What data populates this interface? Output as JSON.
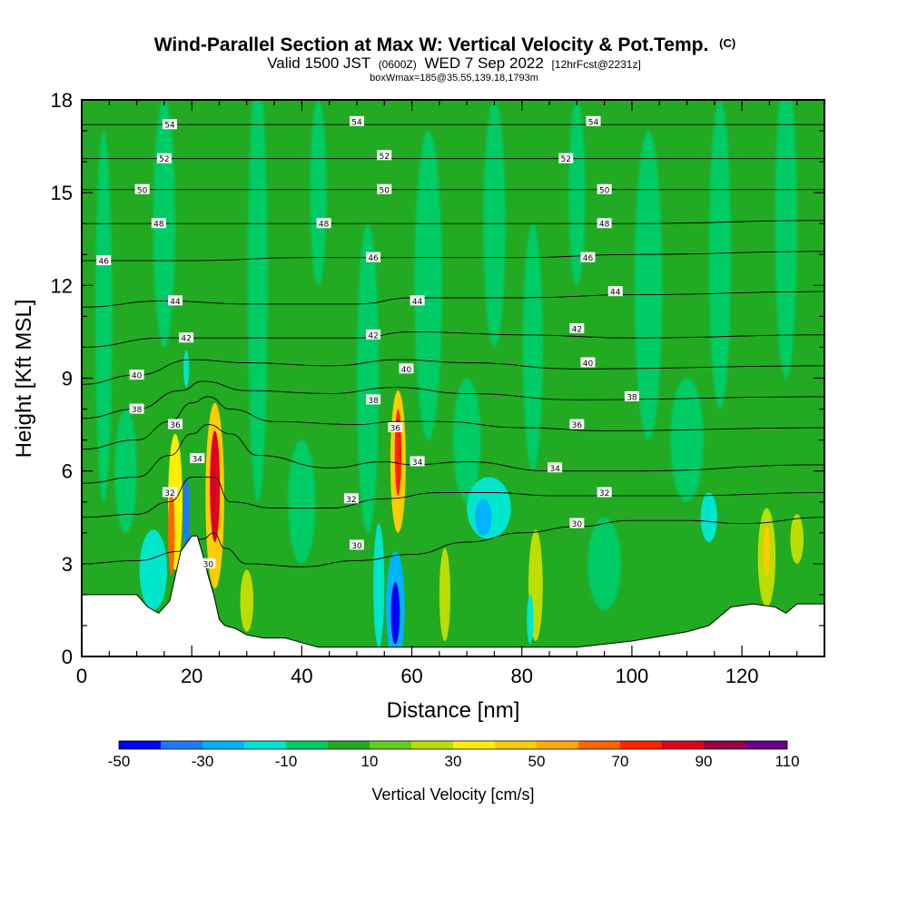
{
  "chart_data": {
    "type": "heatmap",
    "title": "Wind-Parallel Section at Max W: Vertical Velocity & Pot.Temp.",
    "title_suffix": "(C)",
    "subtitle": {
      "valid": "Valid 1500 JST",
      "zulu": "(0600Z)",
      "date": "WED 7 Sep 2022",
      "forecast": "[12hrFcst@2231z]"
    },
    "note": "boxWmax=185@35.55,139.18,1793m",
    "xlabel": "Distance [nm]",
    "ylabel": "Height [Kft MSL]",
    "xlim": [
      0,
      135
    ],
    "ylim": [
      0,
      18
    ],
    "xticks": [
      0,
      20,
      40,
      60,
      80,
      100,
      120
    ],
    "yticks": [
      0,
      3,
      6,
      9,
      12,
      15,
      18
    ],
    "colorbar": {
      "label": "Vertical Velocity [cm/s]",
      "range": [
        -50,
        110
      ],
      "tick_values": [
        -50,
        -30,
        -10,
        10,
        30,
        50,
        70,
        90,
        110
      ],
      "colors": [
        "#0000ff",
        "#2277ff",
        "#00b4ff",
        "#00e6cc",
        "#00cc66",
        "#22aa22",
        "#66cc22",
        "#bbdd00",
        "#ffee00",
        "#ffcc00",
        "#ffaa00",
        "#ff6600",
        "#ff2200",
        "#dd0022",
        "#990044",
        "#660088"
      ]
    },
    "terrain": [
      [
        0,
        2.0
      ],
      [
        5,
        2.0
      ],
      [
        10,
        2.0
      ],
      [
        12,
        1.6
      ],
      [
        14,
        1.4
      ],
      [
        16,
        1.8
      ],
      [
        18,
        3.4
      ],
      [
        20,
        3.9
      ],
      [
        21,
        3.9
      ],
      [
        22,
        3.3
      ],
      [
        23,
        2.6
      ],
      [
        24,
        2.0
      ],
      [
        25,
        1.2
      ],
      [
        26,
        1.0
      ],
      [
        28,
        0.9
      ],
      [
        30,
        0.7
      ],
      [
        33,
        0.6
      ],
      [
        37,
        0.6
      ],
      [
        43,
        0.3
      ],
      [
        50,
        0.3
      ],
      [
        60,
        0.3
      ],
      [
        70,
        0.3
      ],
      [
        80,
        0.3
      ],
      [
        90,
        0.3
      ],
      [
        100,
        0.5
      ],
      [
        110,
        0.8
      ],
      [
        114,
        1.0
      ],
      [
        118,
        1.6
      ],
      [
        122,
        1.7
      ],
      [
        126,
        1.6
      ],
      [
        128,
        1.4
      ],
      [
        130,
        1.7
      ],
      [
        135,
        1.7
      ]
    ],
    "theta_contours": [
      {
        "label": "30",
        "points": [
          [
            0,
            3.0
          ],
          [
            10,
            3.1
          ],
          [
            18,
            3.4
          ],
          [
            22,
            3.8
          ],
          [
            24,
            4.0
          ],
          [
            26,
            3.5
          ],
          [
            30,
            3.0
          ],
          [
            40,
            2.9
          ],
          [
            50,
            3.1
          ],
          [
            60,
            3.3
          ],
          [
            70,
            3.7
          ],
          [
            80,
            4.0
          ],
          [
            90,
            4.2
          ],
          [
            100,
            4.4
          ],
          [
            110,
            4.4
          ],
          [
            120,
            4.3
          ],
          [
            135,
            4.5
          ]
        ]
      },
      {
        "label": "32",
        "points": [
          [
            0,
            4.5
          ],
          [
            10,
            4.6
          ],
          [
            16,
            5.0
          ],
          [
            20,
            5.8
          ],
          [
            24,
            5.8
          ],
          [
            27,
            5.0
          ],
          [
            35,
            4.8
          ],
          [
            45,
            4.8
          ],
          [
            55,
            5.1
          ],
          [
            65,
            5.3
          ],
          [
            75,
            5.3
          ],
          [
            85,
            5.2
          ],
          [
            95,
            5.2
          ],
          [
            110,
            5.2
          ],
          [
            135,
            5.3
          ]
        ]
      },
      {
        "label": "34",
        "points": [
          [
            0,
            5.6
          ],
          [
            10,
            5.8
          ],
          [
            16,
            6.5
          ],
          [
            20,
            7.2
          ],
          [
            23,
            7.5
          ],
          [
            27,
            7.2
          ],
          [
            32,
            6.5
          ],
          [
            45,
            6.1
          ],
          [
            55,
            6.3
          ],
          [
            60,
            6.2
          ],
          [
            70,
            6.3
          ],
          [
            85,
            6.0
          ],
          [
            100,
            6.0
          ],
          [
            135,
            6.2
          ]
        ]
      },
      {
        "label": "36",
        "points": [
          [
            0,
            6.7
          ],
          [
            10,
            7.0
          ],
          [
            16,
            7.6
          ],
          [
            20,
            8.2
          ],
          [
            23,
            8.4
          ],
          [
            27,
            8.0
          ],
          [
            35,
            7.6
          ],
          [
            50,
            7.5
          ],
          [
            57,
            7.6
          ],
          [
            65,
            7.6
          ],
          [
            80,
            7.4
          ],
          [
            95,
            7.3
          ],
          [
            135,
            7.4
          ]
        ]
      },
      {
        "label": "38",
        "points": [
          [
            0,
            7.7
          ],
          [
            10,
            8.0
          ],
          [
            18,
            8.6
          ],
          [
            22,
            8.9
          ],
          [
            30,
            8.6
          ],
          [
            45,
            8.5
          ],
          [
            57,
            8.7
          ],
          [
            70,
            8.5
          ],
          [
            90,
            8.3
          ],
          [
            135,
            8.4
          ]
        ]
      },
      {
        "label": "40",
        "points": [
          [
            0,
            8.8
          ],
          [
            10,
            9.1
          ],
          [
            20,
            9.6
          ],
          [
            30,
            9.5
          ],
          [
            45,
            9.4
          ],
          [
            58,
            9.6
          ],
          [
            70,
            9.5
          ],
          [
            90,
            9.3
          ],
          [
            135,
            9.4
          ]
        ]
      },
      {
        "label": "42",
        "points": [
          [
            0,
            10.0
          ],
          [
            15,
            10.3
          ],
          [
            30,
            10.3
          ],
          [
            50,
            10.3
          ],
          [
            60,
            10.5
          ],
          [
            80,
            10.4
          ],
          [
            100,
            10.3
          ],
          [
            135,
            10.4
          ]
        ]
      },
      {
        "label": "44",
        "points": [
          [
            0,
            11.3
          ],
          [
            15,
            11.5
          ],
          [
            30,
            11.4
          ],
          [
            50,
            11.4
          ],
          [
            60,
            11.6
          ],
          [
            80,
            11.6
          ],
          [
            100,
            11.7
          ],
          [
            135,
            11.8
          ]
        ]
      },
      {
        "label": "46",
        "points": [
          [
            0,
            12.8
          ],
          [
            20,
            12.8
          ],
          [
            40,
            12.9
          ],
          [
            60,
            12.9
          ],
          [
            80,
            12.9
          ],
          [
            100,
            13.0
          ],
          [
            135,
            13.1
          ]
        ]
      },
      {
        "label": "48",
        "points": [
          [
            0,
            14.0
          ],
          [
            20,
            14.0
          ],
          [
            40,
            14.0
          ],
          [
            60,
            14.0
          ],
          [
            80,
            14.0
          ],
          [
            100,
            14.0
          ],
          [
            135,
            14.1
          ]
        ]
      },
      {
        "label": "50",
        "points": [
          [
            0,
            15.1
          ],
          [
            20,
            15.1
          ],
          [
            40,
            15.1
          ],
          [
            60,
            15.1
          ],
          [
            80,
            15.1
          ],
          [
            100,
            15.1
          ],
          [
            135,
            15.1
          ]
        ]
      },
      {
        "label": "52",
        "points": [
          [
            0,
            16.1
          ],
          [
            20,
            16.1
          ],
          [
            40,
            16.1
          ],
          [
            60,
            16.1
          ],
          [
            80,
            16.1
          ],
          [
            100,
            16.1
          ],
          [
            135,
            16.1
          ]
        ]
      },
      {
        "label": "54",
        "points": [
          [
            0,
            17.2
          ],
          [
            20,
            17.2
          ],
          [
            40,
            17.2
          ],
          [
            60,
            17.2
          ],
          [
            80,
            17.2
          ],
          [
            100,
            17.2
          ],
          [
            135,
            17.2
          ]
        ]
      }
    ],
    "contour_labels": [
      {
        "text": "54",
        "x": 16,
        "y": 17.2
      },
      {
        "text": "54",
        "x": 50,
        "y": 17.3
      },
      {
        "text": "54",
        "x": 93,
        "y": 17.3
      },
      {
        "text": "52",
        "x": 15,
        "y": 16.1
      },
      {
        "text": "52",
        "x": 55,
        "y": 16.2
      },
      {
        "text": "52",
        "x": 88,
        "y": 16.1
      },
      {
        "text": "50",
        "x": 11,
        "y": 15.1
      },
      {
        "text": "50",
        "x": 55,
        "y": 15.1
      },
      {
        "text": "50",
        "x": 95,
        "y": 15.1
      },
      {
        "text": "48",
        "x": 14,
        "y": 14.0
      },
      {
        "text": "48",
        "x": 44,
        "y": 14.0
      },
      {
        "text": "48",
        "x": 95,
        "y": 14.0
      },
      {
        "text": "46",
        "x": 4,
        "y": 12.8
      },
      {
        "text": "46",
        "x": 53,
        "y": 12.9
      },
      {
        "text": "46",
        "x": 92,
        "y": 12.9
      },
      {
        "text": "44",
        "x": 17,
        "y": 11.5
      },
      {
        "text": "44",
        "x": 61,
        "y": 11.5
      },
      {
        "text": "44",
        "x": 97,
        "y": 11.8
      },
      {
        "text": "42",
        "x": 19,
        "y": 10.3
      },
      {
        "text": "42",
        "x": 53,
        "y": 10.4
      },
      {
        "text": "42",
        "x": 90,
        "y": 10.6
      },
      {
        "text": "40",
        "x": 10,
        "y": 9.1
      },
      {
        "text": "40",
        "x": 59,
        "y": 9.3
      },
      {
        "text": "40",
        "x": 92,
        "y": 9.5
      },
      {
        "text": "38",
        "x": 10,
        "y": 8.0
      },
      {
        "text": "38",
        "x": 53,
        "y": 8.3
      },
      {
        "text": "38",
        "x": 100,
        "y": 8.4
      },
      {
        "text": "36",
        "x": 17,
        "y": 7.5
      },
      {
        "text": "36",
        "x": 57,
        "y": 7.4
      },
      {
        "text": "36",
        "x": 90,
        "y": 7.5
      },
      {
        "text": "34",
        "x": 21,
        "y": 6.4
      },
      {
        "text": "34",
        "x": 61,
        "y": 6.3
      },
      {
        "text": "34",
        "x": 86,
        "y": 6.1
      },
      {
        "text": "32",
        "x": 16,
        "y": 5.3
      },
      {
        "text": "32",
        "x": 49,
        "y": 5.1
      },
      {
        "text": "32",
        "x": 95,
        "y": 5.3
      },
      {
        "text": "30",
        "x": 23,
        "y": 3.0
      },
      {
        "text": "30",
        "x": 50,
        "y": 3.6
      },
      {
        "text": "30",
        "x": 90,
        "y": 4.3
      }
    ],
    "vv_features": [
      {
        "x": 17,
        "y": 5.0,
        "rx": 1.3,
        "ry": 2.2,
        "value": 35
      },
      {
        "x": 16.3,
        "y": 4.0,
        "rx": 0.6,
        "ry": 1.4,
        "value": 60
      },
      {
        "x": 19,
        "y": 4.6,
        "rx": 0.6,
        "ry": 1.2,
        "value": -35
      },
      {
        "x": 24.2,
        "y": 5.2,
        "rx": 1.7,
        "ry": 3.0,
        "value": 45
      },
      {
        "x": 24.2,
        "y": 5.5,
        "rx": 0.9,
        "ry": 1.8,
        "value": 85
      },
      {
        "x": 57.5,
        "y": 6.3,
        "rx": 1.4,
        "ry": 2.3,
        "value": 40
      },
      {
        "x": 57.5,
        "y": 6.6,
        "rx": 0.6,
        "ry": 1.4,
        "value": 75
      },
      {
        "x": 57,
        "y": 1.6,
        "rx": 1.7,
        "ry": 1.8,
        "value": -30
      },
      {
        "x": 57,
        "y": 1.4,
        "rx": 0.8,
        "ry": 1.0,
        "value": -50
      },
      {
        "x": 13,
        "y": 2.8,
        "rx": 2.5,
        "ry": 1.3,
        "value": -15
      },
      {
        "x": 54,
        "y": 2.3,
        "rx": 1.0,
        "ry": 2.0,
        "value": -15
      },
      {
        "x": 74,
        "y": 4.8,
        "rx": 4.0,
        "ry": 1.0,
        "value": -15
      },
      {
        "x": 73,
        "y": 4.5,
        "rx": 1.5,
        "ry": 0.6,
        "value": -25
      },
      {
        "x": 82.5,
        "y": 2.3,
        "rx": 1.3,
        "ry": 1.8,
        "value": 25
      },
      {
        "x": 81.5,
        "y": 1.2,
        "rx": 0.6,
        "ry": 0.8,
        "value": -15
      },
      {
        "x": 124.5,
        "y": 3.2,
        "rx": 1.6,
        "ry": 1.6,
        "value": 25
      },
      {
        "x": 124.5,
        "y": 3.4,
        "rx": 0.6,
        "ry": 0.8,
        "value": 40
      },
      {
        "x": 114,
        "y": 4.5,
        "rx": 1.5,
        "ry": 0.8,
        "value": -15
      },
      {
        "x": 66,
        "y": 2.0,
        "rx": 1.0,
        "ry": 1.5,
        "value": 20
      },
      {
        "x": 30,
        "y": 1.8,
        "rx": 1.2,
        "ry": 1.0,
        "value": 20
      },
      {
        "x": 19,
        "y": 9.3,
        "rx": 0.5,
        "ry": 0.6,
        "value": -15
      },
      {
        "x": 130,
        "y": 3.8,
        "rx": 1.2,
        "ry": 0.8,
        "value": 20
      }
    ],
    "background_streaks": [
      {
        "x": 4,
        "y": 11,
        "rx": 1.5,
        "ry": 6,
        "value": -5
      },
      {
        "x": 15,
        "y": 14,
        "rx": 2.0,
        "ry": 4,
        "value": -5
      },
      {
        "x": 32,
        "y": 12,
        "rx": 1.8,
        "ry": 7,
        "value": -5
      },
      {
        "x": 43,
        "y": 15,
        "rx": 1.5,
        "ry": 3,
        "value": -5
      },
      {
        "x": 52,
        "y": 9,
        "rx": 2.0,
        "ry": 5,
        "value": -5
      },
      {
        "x": 63,
        "y": 12,
        "rx": 2.5,
        "ry": 5,
        "value": -5
      },
      {
        "x": 75,
        "y": 14,
        "rx": 2.0,
        "ry": 4,
        "value": -5
      },
      {
        "x": 82,
        "y": 10,
        "rx": 1.8,
        "ry": 4,
        "value": -5
      },
      {
        "x": 90,
        "y": 15,
        "rx": 1.5,
        "ry": 3,
        "value": -5
      },
      {
        "x": 103,
        "y": 12,
        "rx": 2.5,
        "ry": 5,
        "value": -5
      },
      {
        "x": 116,
        "y": 13,
        "rx": 2.0,
        "ry": 5,
        "value": -5
      },
      {
        "x": 128,
        "y": 14,
        "rx": 2.0,
        "ry": 5,
        "value": -5
      },
      {
        "x": 70,
        "y": 7,
        "rx": 2.5,
        "ry": 2,
        "value": -5
      },
      {
        "x": 110,
        "y": 7,
        "rx": 3.0,
        "ry": 2,
        "value": -5
      },
      {
        "x": 40,
        "y": 5,
        "rx": 2.5,
        "ry": 2,
        "value": -5
      },
      {
        "x": 95,
        "y": 3,
        "rx": 3.0,
        "ry": 1.5,
        "value": -5
      },
      {
        "x": 8,
        "y": 6,
        "rx": 2.0,
        "ry": 2,
        "value": -5
      }
    ]
  }
}
